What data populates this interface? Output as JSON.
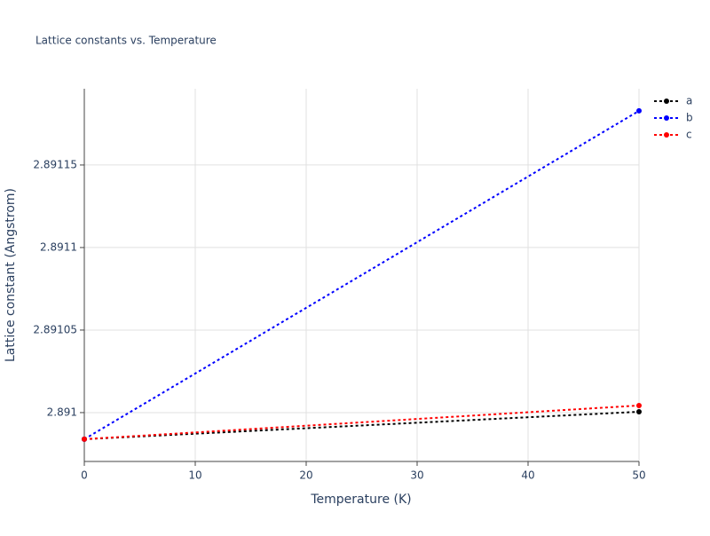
{
  "chart_data": {
    "type": "line",
    "title": "Lattice constants vs. Temperature",
    "xlabel": "Temperature (K)",
    "ylabel": "Lattice constant (Angstrom)",
    "x": [
      0,
      50
    ],
    "series": [
      {
        "name": "a",
        "color": "#000000",
        "values": [
          2.8909839,
          2.8910005
        ]
      },
      {
        "name": "b",
        "color": "#0000ff",
        "values": [
          2.8909839,
          2.8911828
        ]
      },
      {
        "name": "c",
        "color": "#ff0000",
        "values": [
          2.8909839,
          2.8910043
        ]
      }
    ],
    "xlim": [
      0,
      50
    ],
    "xticks": [
      0,
      10,
      20,
      30,
      40,
      50
    ],
    "ylim": [
      2.8909704,
      2.8911962
    ],
    "yticks": [
      2.891,
      2.89105,
      2.8911,
      2.89115
    ],
    "grid": true,
    "legend": "top-right"
  }
}
